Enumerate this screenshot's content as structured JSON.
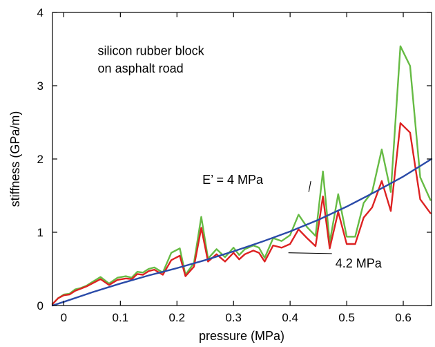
{
  "chart_data": {
    "type": "line",
    "title": "",
    "xlabel": "pressure (MPa)",
    "ylabel": "stiffness (GPa/m)",
    "xlim": [
      -0.02,
      0.65
    ],
    "ylim": [
      0,
      4
    ],
    "xticks": [
      0,
      0.1,
      0.2,
      0.3,
      0.4,
      0.5,
      0.6
    ],
    "xtick_labels": [
      "0",
      "0.1",
      "0.2",
      "0.3",
      "0.4",
      "0.5",
      "0.6"
    ],
    "yticks": [
      0,
      1,
      2,
      3,
      4
    ],
    "ytick_labels": [
      "0",
      "1",
      "2",
      "3",
      "4"
    ],
    "grid": false,
    "annotations": [
      {
        "text": "silicon rubber block",
        "x": 0.06,
        "y": 3.42
      },
      {
        "text": "on asphalt road",
        "x": 0.06,
        "y": 3.18
      },
      {
        "text": "E’ = 4 MPa",
        "x": 0.245,
        "y": 1.66,
        "pointer_to": [
          0.433,
          1.55
        ]
      },
      {
        "text": "4.2 MPa",
        "x": 0.48,
        "y": 0.52,
        "pointer_to": [
          0.397,
          0.72
        ]
      }
    ],
    "series": [
      {
        "color": "#66bb44",
        "x": [
          -0.02,
          -0.01,
          0.0,
          0.01,
          0.02,
          0.03,
          0.04,
          0.05,
          0.065,
          0.08,
          0.095,
          0.11,
          0.12,
          0.13,
          0.14,
          0.15,
          0.16,
          0.175,
          0.19,
          0.205,
          0.215,
          0.23,
          0.243,
          0.255,
          0.27,
          0.285,
          0.3,
          0.31,
          0.32,
          0.335,
          0.345,
          0.355,
          0.37,
          0.385,
          0.4,
          0.415,
          0.43,
          0.445,
          0.458,
          0.47,
          0.485,
          0.5,
          0.515,
          0.53,
          0.545,
          0.562,
          0.578,
          0.595,
          0.612,
          0.63,
          0.648
        ],
        "y": [
          0.02,
          0.1,
          0.15,
          0.16,
          0.22,
          0.24,
          0.27,
          0.32,
          0.39,
          0.3,
          0.38,
          0.4,
          0.38,
          0.46,
          0.45,
          0.5,
          0.52,
          0.45,
          0.72,
          0.78,
          0.42,
          0.58,
          1.21,
          0.64,
          0.77,
          0.66,
          0.79,
          0.69,
          0.77,
          0.82,
          0.79,
          0.65,
          0.92,
          0.88,
          0.96,
          1.24,
          1.07,
          0.95,
          1.83,
          0.86,
          1.52,
          0.94,
          0.94,
          1.4,
          1.55,
          2.13,
          1.55,
          3.54,
          3.27,
          1.75,
          1.44
        ]
      },
      {
        "color": "#dd2222",
        "x": [
          -0.02,
          -0.01,
          0.0,
          0.01,
          0.02,
          0.03,
          0.04,
          0.05,
          0.065,
          0.08,
          0.095,
          0.11,
          0.12,
          0.13,
          0.14,
          0.15,
          0.16,
          0.175,
          0.19,
          0.205,
          0.215,
          0.23,
          0.243,
          0.255,
          0.27,
          0.285,
          0.3,
          0.31,
          0.32,
          0.335,
          0.345,
          0.355,
          0.37,
          0.385,
          0.4,
          0.415,
          0.43,
          0.445,
          0.458,
          0.47,
          0.485,
          0.5,
          0.515,
          0.53,
          0.545,
          0.562,
          0.578,
          0.595,
          0.612,
          0.63,
          0.648
        ],
        "y": [
          0.02,
          0.1,
          0.14,
          0.15,
          0.2,
          0.23,
          0.26,
          0.3,
          0.36,
          0.28,
          0.35,
          0.37,
          0.36,
          0.43,
          0.42,
          0.47,
          0.49,
          0.42,
          0.62,
          0.68,
          0.4,
          0.53,
          1.06,
          0.6,
          0.7,
          0.6,
          0.72,
          0.63,
          0.7,
          0.75,
          0.72,
          0.6,
          0.82,
          0.79,
          0.84,
          1.04,
          0.92,
          0.81,
          1.49,
          0.78,
          1.28,
          0.84,
          0.84,
          1.2,
          1.34,
          1.7,
          1.29,
          2.49,
          2.36,
          1.45,
          1.26
        ]
      },
      {
        "color": "#2a4aa8",
        "x": [
          -0.02,
          0.0,
          0.05,
          0.1,
          0.15,
          0.2,
          0.25,
          0.3,
          0.35,
          0.4,
          0.45,
          0.5,
          0.55,
          0.6,
          0.65
        ],
        "y": [
          0.0,
          0.05,
          0.18,
          0.3,
          0.41,
          0.51,
          0.62,
          0.74,
          0.87,
          1.01,
          1.17,
          1.35,
          1.55,
          1.76,
          2.0
        ]
      }
    ]
  }
}
